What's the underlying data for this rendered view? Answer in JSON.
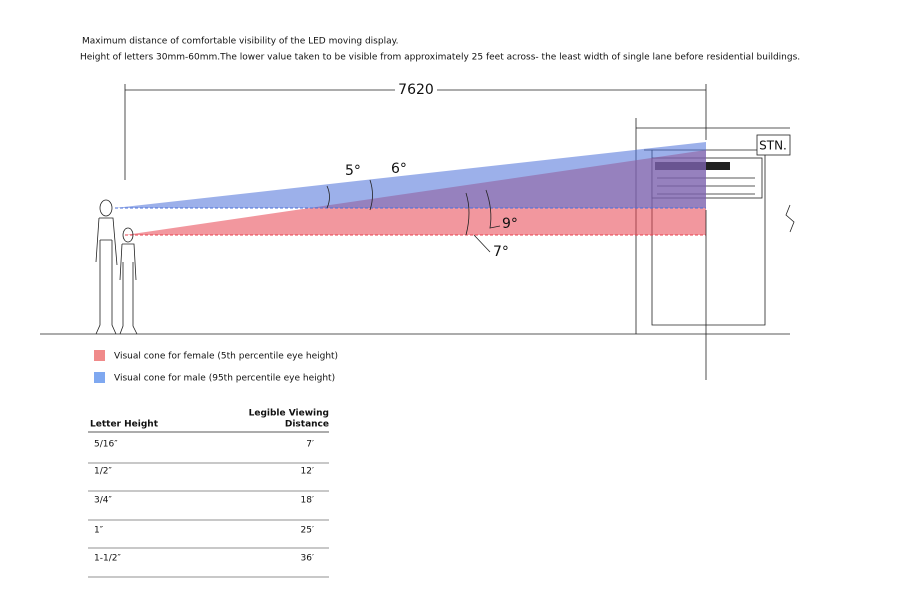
{
  "header": {
    "line1": "Maximum distance of  comfortable visibility of the LED moving display.",
    "line2": "Height of letters 30mm-60mm.The lower value taken to be visible from approximately 25 feet across- the least width of single lane before residential buildings."
  },
  "diagram": {
    "dimension": "7620",
    "angles": [
      "5°",
      "6°",
      "9°",
      "7°"
    ],
    "sign": "STN."
  },
  "legend": [
    {
      "label": "Visual cone for female (5th percentile eye height)",
      "color": "#f08a8a"
    },
    {
      "label": "Visual cone for male (95th percentile eye height)",
      "color": "#7fa8f0"
    }
  ],
  "table": {
    "header": {
      "col1": "Letter Height",
      "col2_line1": "Legible Viewing",
      "col2_line2": "Distance"
    },
    "rows": [
      [
        "5/16″",
        "7′"
      ],
      [
        "1/2″",
        "12′"
      ],
      [
        "3/4″",
        "18′"
      ],
      [
        "1″",
        "25′"
      ],
      [
        "1-1/2″",
        "36′"
      ]
    ]
  }
}
